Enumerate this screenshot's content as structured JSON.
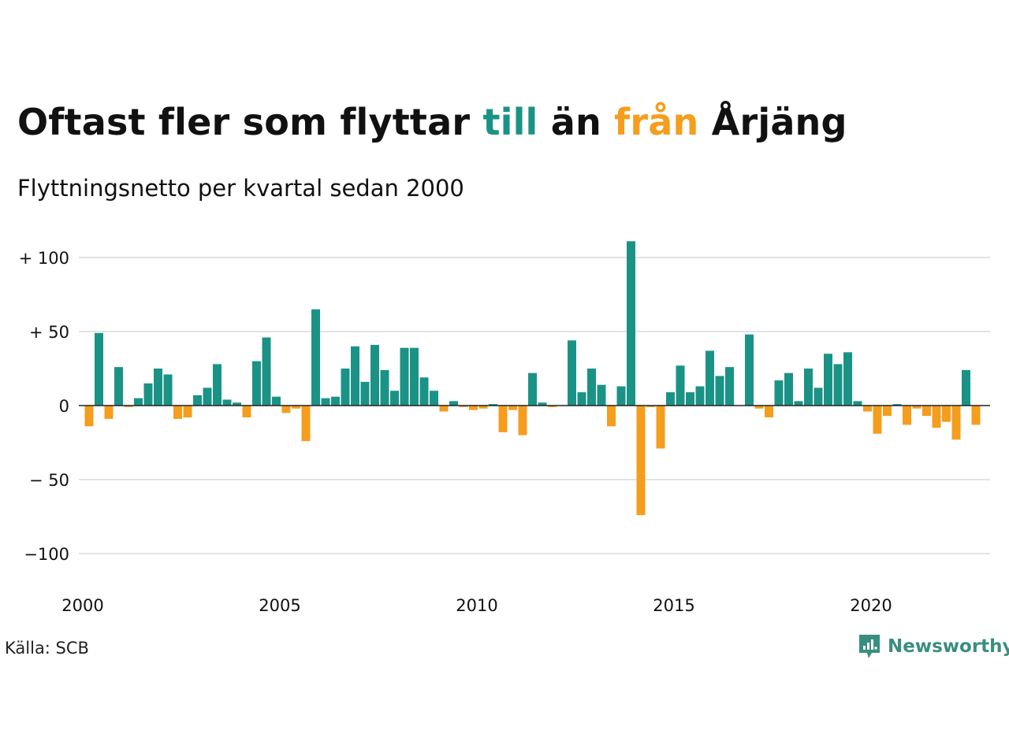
{
  "title": {
    "part1": "Oftast fler som flyttar ",
    "till": "till",
    "part2": " än ",
    "fran": "från",
    "part3": " Årjäng"
  },
  "subtitle": "Flyttningsnetto per kvartal sedan 2000",
  "source": "Källa: SCB",
  "brand": "Newsworthy",
  "colors": {
    "positive": "#1a9386",
    "negative": "#f59d1c",
    "brand": "#3a8e7f",
    "grid": "#e3e3e3"
  },
  "chart_data": {
    "type": "bar",
    "x_start_year": 2000,
    "periods_per_year": 4,
    "ylim": [
      -120,
      110
    ],
    "yticks": [
      {
        "value": 100,
        "label": "+ 100"
      },
      {
        "value": 50,
        "label": "+  50"
      },
      {
        "value": 0,
        "label": "0"
      },
      {
        "value": -50,
        "label": "− 50"
      },
      {
        "value": -100,
        "label": "−100"
      }
    ],
    "xticks": [
      "2000",
      "2005",
      "2010",
      "2015",
      "2020"
    ],
    "values": [
      -14,
      49,
      -9,
      26,
      -1,
      5,
      15,
      25,
      21,
      -9,
      -8,
      7,
      12,
      28,
      4,
      2,
      -8,
      30,
      46,
      6,
      -5,
      -2,
      -24,
      65,
      5,
      6,
      25,
      40,
      16,
      41,
      24,
      10,
      39,
      39,
      19,
      10,
      -4,
      3,
      -1,
      -3,
      -2,
      1,
      -18,
      -3,
      -20,
      22,
      2,
      -1,
      0,
      44,
      9,
      25,
      14,
      -14,
      13,
      111,
      -74,
      -1,
      -29,
      9,
      27,
      9,
      13,
      37,
      20,
      26,
      0,
      48,
      -2,
      -8,
      17,
      22,
      3,
      25,
      12,
      35,
      28,
      36,
      3,
      -4,
      -19,
      -7,
      1,
      -13,
      -2,
      -7,
      -15,
      -11,
      -23,
      24,
      -13
    ]
  }
}
